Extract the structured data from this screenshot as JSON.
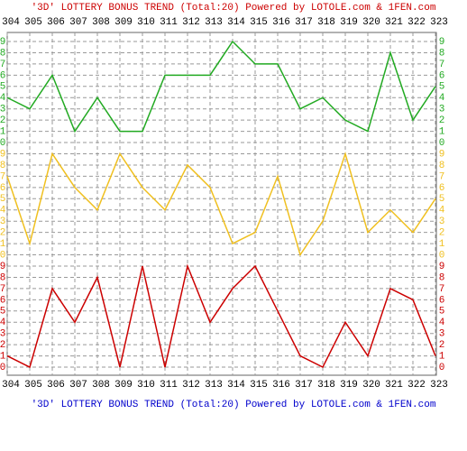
{
  "chart_data": [
    {
      "type": "line",
      "title": "'3D' LOTTERY BONUS TREND (Total:20)  Powered by LOTOLE.com & 1FEN.com",
      "categories": [
        "304",
        "305",
        "306",
        "307",
        "308",
        "309",
        "310",
        "311",
        "312",
        "313",
        "314",
        "315",
        "316",
        "317",
        "318",
        "319",
        "320",
        "321",
        "322",
        "323"
      ],
      "values": [
        4,
        3,
        6,
        1,
        4,
        1,
        1,
        6,
        6,
        6,
        9,
        7,
        7,
        3,
        4,
        2,
        1,
        8,
        2,
        5
      ],
      "color": "#22aa22",
      "ylim": [
        0,
        9
      ],
      "yticks": [
        0,
        1,
        2,
        3,
        4,
        5,
        6,
        7,
        8,
        9
      ],
      "grid": true
    },
    {
      "type": "line",
      "values": [
        7,
        1,
        9,
        6,
        4,
        9,
        6,
        4,
        8,
        6,
        1,
        2,
        7,
        0,
        3,
        9,
        2,
        4,
        2,
        5
      ],
      "color": "#f0c020",
      "ylim": [
        0,
        9
      ],
      "yticks": [
        0,
        1,
        2,
        3,
        4,
        5,
        6,
        7,
        8,
        9
      ],
      "grid": true
    },
    {
      "type": "line",
      "values": [
        1,
        0,
        7,
        4,
        8,
        0,
        9,
        0,
        9,
        4,
        7,
        9,
        5,
        1,
        0,
        4,
        1,
        7,
        6,
        1
      ],
      "color": "#cc0000",
      "ylim": [
        0,
        9
      ],
      "yticks": [
        0,
        1,
        2,
        3,
        4,
        5,
        6,
        7,
        8,
        9
      ],
      "grid": true
    }
  ]
}
